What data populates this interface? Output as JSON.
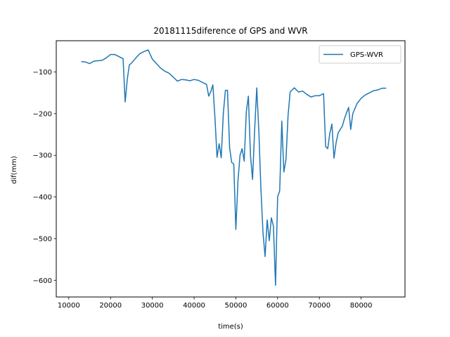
{
  "chart_data": {
    "type": "line",
    "title": "20181115diference of GPS and WVR",
    "xlabel": "time(s)",
    "ylabel": "dif(mm)",
    "xlim": [
      7000,
      90500
    ],
    "ylim": [
      -640,
      -25
    ],
    "xticks": [
      10000,
      20000,
      30000,
      40000,
      50000,
      60000,
      70000,
      80000
    ],
    "yticks": [
      -600,
      -500,
      -400,
      -300,
      -200,
      -100
    ],
    "grid": false,
    "legend": {
      "position": "top-right"
    },
    "series": [
      {
        "name": "GPS-WVR",
        "color": "#1f77b4",
        "x": [
          13000,
          14000,
          15000,
          16000,
          18000,
          19000,
          20000,
          21000,
          22000,
          23000,
          23500,
          24000,
          24500,
          25000,
          26000,
          27000,
          28000,
          29000,
          30000,
          31000,
          32000,
          33000,
          34000,
          35000,
          36000,
          37000,
          38000,
          39000,
          40000,
          41000,
          42000,
          43000,
          43500,
          44000,
          44500,
          45000,
          45500,
          46000,
          46500,
          47000,
          47500,
          48000,
          48500,
          49000,
          49500,
          50000,
          50500,
          51000,
          51500,
          52000,
          52500,
          53000,
          53500,
          54000,
          54500,
          55000,
          55500,
          56000,
          56500,
          57000,
          57500,
          58000,
          58500,
          59000,
          59500,
          60000,
          60500,
          61000,
          61500,
          62000,
          62500,
          63000,
          64000,
          65000,
          66000,
          67000,
          68000,
          69000,
          70000,
          71000,
          71500,
          72000,
          72500,
          73000,
          73500,
          74000,
          74500,
          75000,
          75500,
          76000,
          76500,
          77000,
          77500,
          78000,
          79000,
          80000,
          81000,
          82000,
          83000,
          84000,
          85000,
          86000
        ],
        "values": [
          -75,
          -76,
          -80,
          -74,
          -72,
          -66,
          -58,
          -58,
          -63,
          -68,
          -172,
          -118,
          -83,
          -79,
          -67,
          -56,
          -51,
          -47,
          -69,
          -80,
          -91,
          -98,
          -103,
          -112,
          -122,
          -118,
          -119,
          -121,
          -118,
          -120,
          -125,
          -130,
          -158,
          -147,
          -131,
          -210,
          -305,
          -272,
          -306,
          -200,
          -144,
          -144,
          -281,
          -317,
          -321,
          -478,
          -362,
          -300,
          -284,
          -314,
          -196,
          -158,
          -300,
          -358,
          -240,
          -138,
          -240,
          -380,
          -486,
          -543,
          -455,
          -505,
          -450,
          -470,
          -612,
          -400,
          -385,
          -218,
          -340,
          -310,
          -205,
          -148,
          -138,
          -148,
          -146,
          -154,
          -160,
          -157,
          -157,
          -152,
          -279,
          -284,
          -247,
          -225,
          -307,
          -270,
          -246,
          -238,
          -230,
          -212,
          -198,
          -185,
          -238,
          -200,
          -176,
          -163,
          -155,
          -150,
          -145,
          -143,
          -139,
          -139
        ]
      }
    ]
  }
}
